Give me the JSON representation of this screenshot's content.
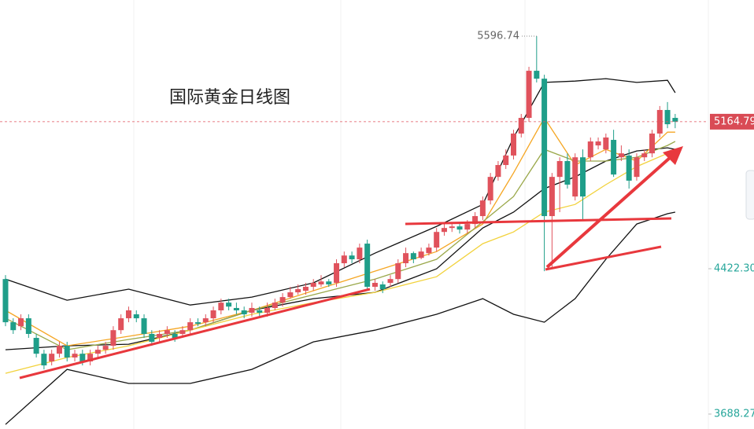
{
  "chart_data": {
    "type": "candlestick",
    "title": "国际黄金日线图",
    "up_color": "#e0525c",
    "down_color": "#1f9e89",
    "ylim": [
      3612.8,
      5779.4
    ],
    "yticks": [
      {
        "value": 4422.3,
        "label": "4422.30"
      },
      3688.27
    ],
    "open": [
      4370,
      4152,
      4132,
      4172,
      4073,
      3993,
      3954,
      3993,
      4033,
      3974,
      3993,
      3954,
      3993,
      4013,
      4033,
      4112,
      4172,
      4192,
      4172,
      4093,
      4073,
      4093,
      4093,
      4093,
      4112,
      4152,
      4152,
      4172,
      4212,
      4251,
      4224,
      4212,
      4200,
      4212,
      4200,
      4224,
      4251,
      4279,
      4303,
      4311,
      4331,
      4343,
      4358,
      4351,
      4450,
      4489,
      4470,
      4549,
      4331,
      4343,
      4351,
      4370,
      4450,
      4501,
      4477,
      4501,
      4529,
      4608,
      4628,
      4636,
      4620,
      4648,
      4688,
      4767,
      4886,
      4946,
      4994,
      5105,
      5184,
      5422,
      5382,
      4688,
      4886,
      4966,
      4787,
      4985,
      4985,
      5045,
      5025,
      5073,
      4985,
      4994,
      4886,
      4985,
      5005,
      5105,
      5224,
      5184
    ],
    "high": [
      4390,
      4172,
      4192,
      4192,
      4093,
      4013,
      4013,
      4053,
      4053,
      4013,
      4013,
      4013,
      4033,
      4053,
      4132,
      4192,
      4231,
      4212,
      4192,
      4112,
      4112,
      4132,
      4112,
      4132,
      4172,
      4172,
      4192,
      4231,
      4271,
      4271,
      4251,
      4231,
      4251,
      4231,
      4251,
      4271,
      4299,
      4331,
      4343,
      4351,
      4370,
      4390,
      4370,
      4470,
      4509,
      4509,
      4549,
      4569,
      4370,
      4358,
      4390,
      4470,
      4529,
      4509,
      4529,
      4549,
      4628,
      4648,
      4648,
      4648,
      4668,
      4708,
      4787,
      4906,
      4966,
      5025,
      5124,
      5204,
      5442,
      5596.74,
      5402,
      4906,
      4985,
      5005,
      5005,
      5025,
      5085,
      5085,
      5105,
      5124,
      5045,
      5025,
      5005,
      5025,
      5124,
      5244,
      5264,
      5204
    ],
    "low": [
      4132,
      4093,
      4112,
      4073,
      3974,
      3914,
      3934,
      3974,
      3954,
      3954,
      3934,
      3934,
      3974,
      3993,
      4013,
      4093,
      4152,
      4152,
      4073,
      4033,
      4053,
      4073,
      4053,
      4073,
      4093,
      4132,
      4132,
      4152,
      4192,
      4212,
      4192,
      4172,
      4180,
      4180,
      4180,
      4212,
      4231,
      4271,
      4291,
      4291,
      4311,
      4331,
      4331,
      4331,
      4430,
      4450,
      4450,
      4311,
      4311,
      4299,
      4331,
      4351,
      4430,
      4450,
      4470,
      4489,
      4509,
      4589,
      4608,
      4600,
      4600,
      4628,
      4668,
      4747,
      4867,
      4926,
      4974,
      5085,
      5164,
      5363,
      4410,
      4430,
      4708,
      4827,
      4767,
      4668,
      4966,
      5025,
      5005,
      4886,
      4966,
      4827,
      4867,
      4966,
      4985,
      5085,
      5132,
      5132
    ],
    "close": [
      4152,
      4112,
      4172,
      4093,
      3993,
      3934,
      3993,
      4033,
      3974,
      3993,
      3954,
      3993,
      4013,
      4033,
      4112,
      4172,
      4212,
      4172,
      4093,
      4053,
      4093,
      4112,
      4073,
      4112,
      4152,
      4144,
      4172,
      4212,
      4251,
      4231,
      4212,
      4192,
      4224,
      4200,
      4224,
      4251,
      4279,
      4303,
      4319,
      4331,
      4351,
      4358,
      4343,
      4450,
      4489,
      4470,
      4529,
      4331,
      4351,
      4319,
      4370,
      4450,
      4501,
      4470,
      4509,
      4529,
      4608,
      4628,
      4636,
      4620,
      4648,
      4688,
      4767,
      4886,
      4946,
      4994,
      5105,
      5184,
      5422,
      5382,
      4688,
      4886,
      4966,
      4847,
      4985,
      4787,
      5065,
      5065,
      5085,
      4898,
      5005,
      4867,
      4985,
      5005,
      5105,
      5224,
      5152,
      5164.79
    ],
    "line_x": [
      0,
      8,
      16,
      24,
      32,
      40,
      48,
      56,
      62,
      66,
      70,
      74,
      78,
      82,
      86,
      87
    ],
    "lines": [
      {
        "color": "#111111",
        "values": [
          4370,
          4263,
          4319,
          4239,
          4279,
          4351,
          4501,
          4636,
          4747,
          5085,
          5363,
          5370,
          5382,
          5363,
          5374,
          5311
        ]
      },
      {
        "color": "#111111",
        "values": [
          3636,
          3914,
          3843,
          3843,
          3914,
          4053,
          4112,
          4192,
          4271,
          4192,
          4152,
          4271,
          4470,
          4648,
          4700,
          4708
        ]
      },
      {
        "color": "#111111",
        "values": [
          4013,
          4033,
          4041,
          4112,
          4212,
          4271,
          4303,
          4422,
          4628,
          4708,
          4827,
          4886,
          4966,
          5017,
          5033,
          5025
        ]
      },
      {
        "color": "#f5a623",
        "values": [
          4212,
          4033,
          4081,
          4132,
          4212,
          4311,
          4410,
          4509,
          4648,
          4906,
          5184,
          4946,
          5025,
          4966,
          5112,
          5112
        ]
      },
      {
        "color": "#9aa84a",
        "values": [
          4172,
          4013,
          4065,
          4112,
          4212,
          4291,
          4370,
          4470,
          4660,
          4787,
          5025,
          4966,
          4966,
          4985,
          5045,
          5065
        ]
      },
      {
        "color": "#f2d23c",
        "values": [
          3894,
          3974,
          4033,
          4112,
          4192,
          4251,
          4303,
          4382,
          4549,
          4608,
          4708,
          4747,
          4847,
          4938,
          5005,
          5025
        ]
      }
    ]
  }
}
